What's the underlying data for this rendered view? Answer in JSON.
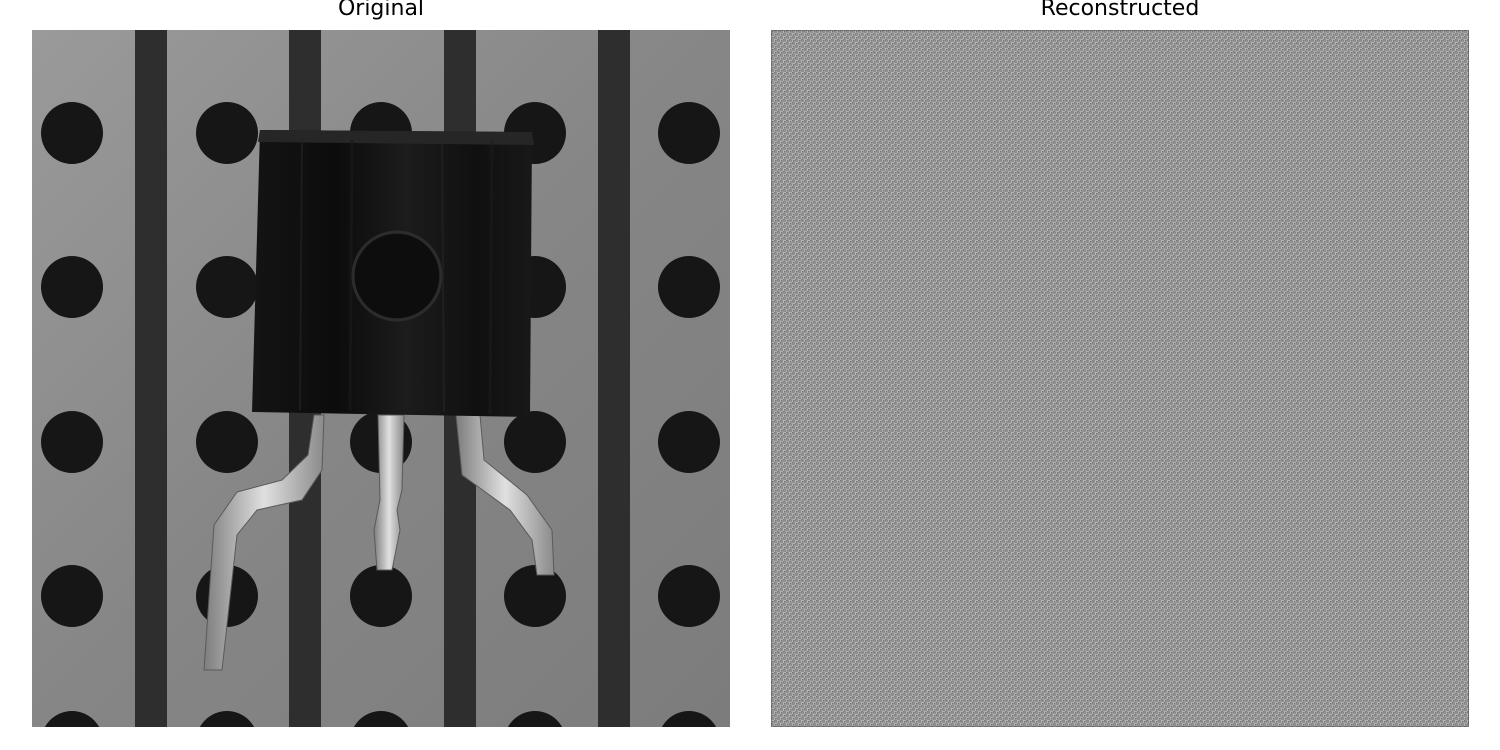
{
  "figure": {
    "panels": [
      {
        "title": "Original",
        "image": "grayscale photo of a 3-lead transistor on a perforated stripboard"
      },
      {
        "title": "Reconstructed",
        "image": "uniform gray high-frequency checkerboard noise"
      }
    ]
  },
  "colors": {
    "board": "#8a8a8a",
    "strip": "#2f2f2f",
    "hole": "#151515",
    "component": "#111111",
    "lead": "#bdbdbd",
    "noise_light": "#b5b5b5",
    "noise_dark": "#6f6f6f"
  }
}
